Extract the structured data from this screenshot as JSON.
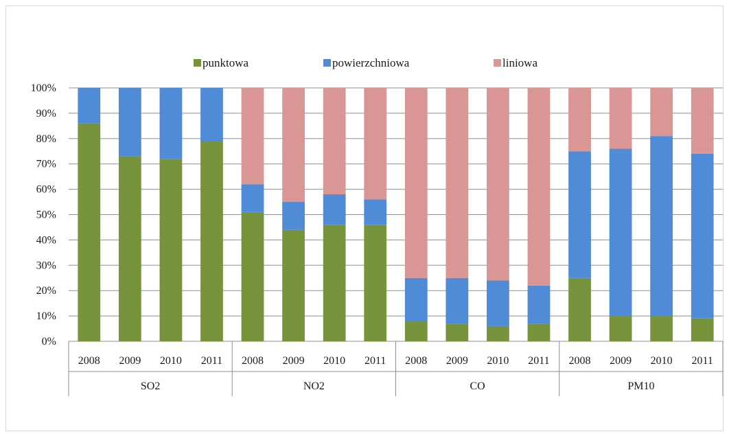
{
  "chart_data": {
    "type": "bar",
    "stacked": true,
    "percent": true,
    "legend": [
      {
        "name": "punktowa",
        "color": "#77933c"
      },
      {
        "name": "powierzchniowa",
        "color": "#4f8bd6"
      },
      {
        "name": "liniowa",
        "color": "#da9694"
      }
    ],
    "legend_position": "top",
    "y_ticks": [
      "0%",
      "10%",
      "20%",
      "30%",
      "40%",
      "50%",
      "60%",
      "70%",
      "80%",
      "90%",
      "100%"
    ],
    "ylim": [
      0,
      100
    ],
    "grid": true,
    "groups": [
      {
        "label": "SO2",
        "years": [
          "2008",
          "2009",
          "2010",
          "2011"
        ]
      },
      {
        "label": "NO2",
        "years": [
          "2008",
          "2009",
          "2010",
          "2011"
        ]
      },
      {
        "label": "CO",
        "years": [
          "2008",
          "2009",
          "2010",
          "2011"
        ]
      },
      {
        "label": "PM10",
        "years": [
          "2008",
          "2009",
          "2010",
          "2011"
        ]
      }
    ],
    "series": [
      {
        "name": "punktowa",
        "values": [
          86,
          73,
          72,
          79,
          51,
          44,
          46,
          46,
          8,
          7,
          6,
          7,
          25,
          10,
          10,
          9
        ]
      },
      {
        "name": "powierzchniowa",
        "values": [
          14,
          27,
          28,
          21,
          11,
          11,
          12,
          10,
          17,
          18,
          18,
          15,
          50,
          66,
          71,
          65
        ]
      },
      {
        "name": "liniowa",
        "values": [
          0,
          0,
          0,
          0,
          38,
          45,
          42,
          44,
          75,
          75,
          76,
          78,
          25,
          24,
          19,
          26
        ]
      }
    ]
  }
}
